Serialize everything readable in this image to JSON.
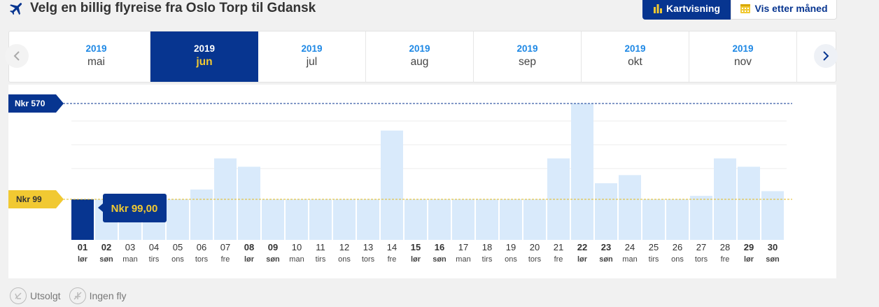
{
  "header": {
    "title": "Velg en billig flyreise fra Oslo Torp til Gdansk",
    "map_view_label": "Kartvisning",
    "month_view_label": "Vis etter måned"
  },
  "months": [
    {
      "year": "2019",
      "name": "mai",
      "active": false
    },
    {
      "year": "2019",
      "name": "jun",
      "active": true
    },
    {
      "year": "2019",
      "name": "jul",
      "active": false
    },
    {
      "year": "2019",
      "name": "aug",
      "active": false
    },
    {
      "year": "2019",
      "name": "sep",
      "active": false
    },
    {
      "year": "2019",
      "name": "okt",
      "active": false
    },
    {
      "year": "2019",
      "name": "nov",
      "active": false
    }
  ],
  "price_markers": {
    "max_label": "Nkr 570",
    "min_label": "Nkr 99",
    "tooltip": "Nkr 99,00"
  },
  "colors": {
    "brand_blue": "#073590",
    "accent_yellow": "#f1c932",
    "bar_light": "#d9eafb",
    "link_blue": "#1e88e5"
  },
  "chart_data": {
    "type": "bar",
    "ylim": [
      0,
      570
    ],
    "selected_index": 0,
    "days": [
      {
        "d": "01",
        "w": "lør",
        "bold": true,
        "v": 99
      },
      {
        "d": "02",
        "w": "søn",
        "bold": true,
        "v": 99
      },
      {
        "d": "03",
        "w": "man",
        "bold": false,
        "v": 99
      },
      {
        "d": "04",
        "w": "tirs",
        "bold": false,
        "v": 99
      },
      {
        "d": "05",
        "w": "ons",
        "bold": false,
        "v": 99
      },
      {
        "d": "06",
        "w": "tors",
        "bold": false,
        "v": 147
      },
      {
        "d": "07",
        "w": "fre",
        "bold": false,
        "v": 300
      },
      {
        "d": "08",
        "w": "lør",
        "bold": true,
        "v": 259
      },
      {
        "d": "09",
        "w": "søn",
        "bold": true,
        "v": 99
      },
      {
        "d": "10",
        "w": "man",
        "bold": false,
        "v": 99
      },
      {
        "d": "11",
        "w": "tirs",
        "bold": false,
        "v": 99
      },
      {
        "d": "12",
        "w": "ons",
        "bold": false,
        "v": 99
      },
      {
        "d": "13",
        "w": "tors",
        "bold": false,
        "v": 99
      },
      {
        "d": "14",
        "w": "fre",
        "bold": false,
        "v": 437
      },
      {
        "d": "15",
        "w": "lør",
        "bold": true,
        "v": 99
      },
      {
        "d": "16",
        "w": "søn",
        "bold": true,
        "v": 99
      },
      {
        "d": "17",
        "w": "man",
        "bold": false,
        "v": 99
      },
      {
        "d": "18",
        "w": "tirs",
        "bold": false,
        "v": 99
      },
      {
        "d": "19",
        "w": "ons",
        "bold": false,
        "v": 99
      },
      {
        "d": "20",
        "w": "tors",
        "bold": false,
        "v": 99
      },
      {
        "d": "21",
        "w": "fre",
        "bold": false,
        "v": 300
      },
      {
        "d": "22",
        "w": "lør",
        "bold": true,
        "v": 570
      },
      {
        "d": "23",
        "w": "søn",
        "bold": true,
        "v": 178
      },
      {
        "d": "24",
        "w": "man",
        "bold": false,
        "v": 218
      },
      {
        "d": "25",
        "w": "tirs",
        "bold": false,
        "v": 99
      },
      {
        "d": "26",
        "w": "ons",
        "bold": false,
        "v": 99
      },
      {
        "d": "27",
        "w": "tors",
        "bold": false,
        "v": 116
      },
      {
        "d": "28",
        "w": "fre",
        "bold": false,
        "v": 300
      },
      {
        "d": "29",
        "w": "lør",
        "bold": true,
        "v": 259
      },
      {
        "d": "30",
        "w": "søn",
        "bold": true,
        "v": 139
      }
    ]
  },
  "legend": {
    "sold_out_label": "Utsolgt",
    "no_flights_label": "Ingen fly"
  }
}
